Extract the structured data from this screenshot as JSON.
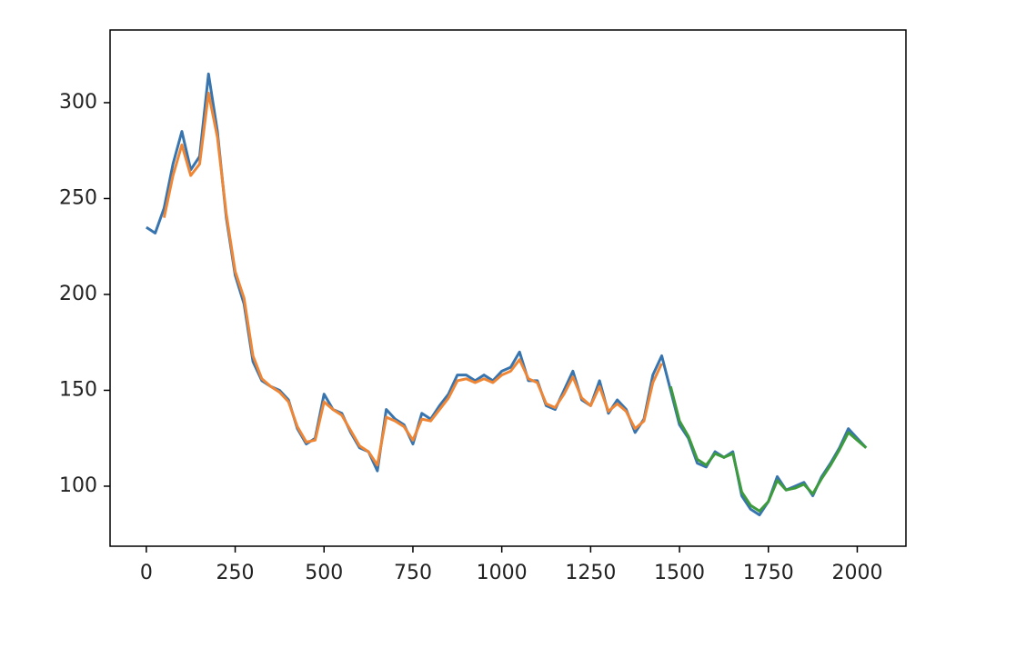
{
  "chart_data": {
    "type": "line",
    "x": [
      0,
      25,
      50,
      75,
      100,
      125,
      150,
      175,
      200,
      225,
      250,
      275,
      300,
      325,
      350,
      375,
      400,
      425,
      450,
      475,
      500,
      525,
      550,
      575,
      600,
      625,
      650,
      675,
      700,
      725,
      750,
      775,
      800,
      825,
      850,
      875,
      900,
      925,
      950,
      975,
      1000,
      1025,
      1050,
      1075,
      1100,
      1125,
      1150,
      1175,
      1200,
      1225,
      1250,
      1275,
      1300,
      1325,
      1350,
      1375,
      1400,
      1425,
      1450,
      1475,
      1500,
      1525,
      1550,
      1575,
      1600,
      1625,
      1650,
      1675,
      1700,
      1725,
      1750,
      1775,
      1800,
      1825,
      1850,
      1875,
      1900,
      1925,
      1950,
      1975,
      2000,
      2025
    ],
    "series": [
      {
        "color": "#3874ae",
        "values": [
          235,
          232,
          245,
          268,
          285,
          265,
          272,
          315,
          285,
          240,
          210,
          195,
          165,
          155,
          152,
          150,
          145,
          130,
          122,
          125,
          148,
          140,
          138,
          128,
          120,
          118,
          108,
          140,
          135,
          132,
          122,
          138,
          135,
          142,
          148,
          158,
          158,
          155,
          158,
          155,
          160,
          162,
          170,
          155,
          155,
          142,
          140,
          150,
          160,
          145,
          142,
          155,
          138,
          145,
          140,
          128,
          135,
          158,
          168,
          150,
          132,
          125,
          112,
          110,
          118,
          115,
          118,
          95,
          88,
          85,
          92,
          105,
          98,
          100,
          102,
          95,
          105,
          112,
          120,
          130,
          125,
          120
        ]
      },
      {
        "color": "#ef8636",
        "values": [
          null,
          null,
          240,
          262,
          278,
          262,
          268,
          305,
          282,
          242,
          212,
          198,
          168,
          156,
          152,
          149,
          144,
          131,
          123,
          124,
          144,
          140,
          137,
          129,
          121,
          118,
          111,
          136,
          134,
          131,
          124,
          135,
          134,
          140,
          146,
          155,
          156,
          154,
          156,
          154,
          158,
          160,
          166,
          156,
          154,
          143,
          141,
          148,
          157,
          146,
          142,
          152,
          139,
          143,
          139,
          130,
          134,
          154,
          164,
          null,
          null,
          null,
          null,
          null,
          null,
          null,
          null,
          null,
          null,
          null,
          null,
          null,
          null,
          null,
          null,
          null,
          null,
          null,
          null,
          null,
          null,
          null
        ]
      },
      {
        "color": "#3d9a3d",
        "values": [
          null,
          null,
          null,
          null,
          null,
          null,
          null,
          null,
          null,
          null,
          null,
          null,
          null,
          null,
          null,
          null,
          null,
          null,
          null,
          null,
          null,
          null,
          null,
          null,
          null,
          null,
          null,
          null,
          null,
          null,
          null,
          null,
          null,
          null,
          null,
          null,
          null,
          null,
          null,
          null,
          null,
          null,
          null,
          null,
          null,
          null,
          null,
          null,
          null,
          null,
          null,
          null,
          null,
          null,
          null,
          null,
          null,
          null,
          null,
          152,
          134,
          126,
          114,
          111,
          117,
          115,
          117,
          97,
          90,
          87,
          92,
          103,
          98,
          99,
          101,
          96,
          104,
          111,
          119,
          128,
          124,
          120
        ]
      }
    ],
    "xlim": [
      -102,
      2137
    ],
    "ylim": [
      68.7,
      337.9
    ],
    "xticks": [
      0,
      250,
      500,
      750,
      1000,
      1250,
      1500,
      1750,
      2000
    ],
    "yticks": [
      100,
      150,
      200,
      250,
      300
    ]
  }
}
